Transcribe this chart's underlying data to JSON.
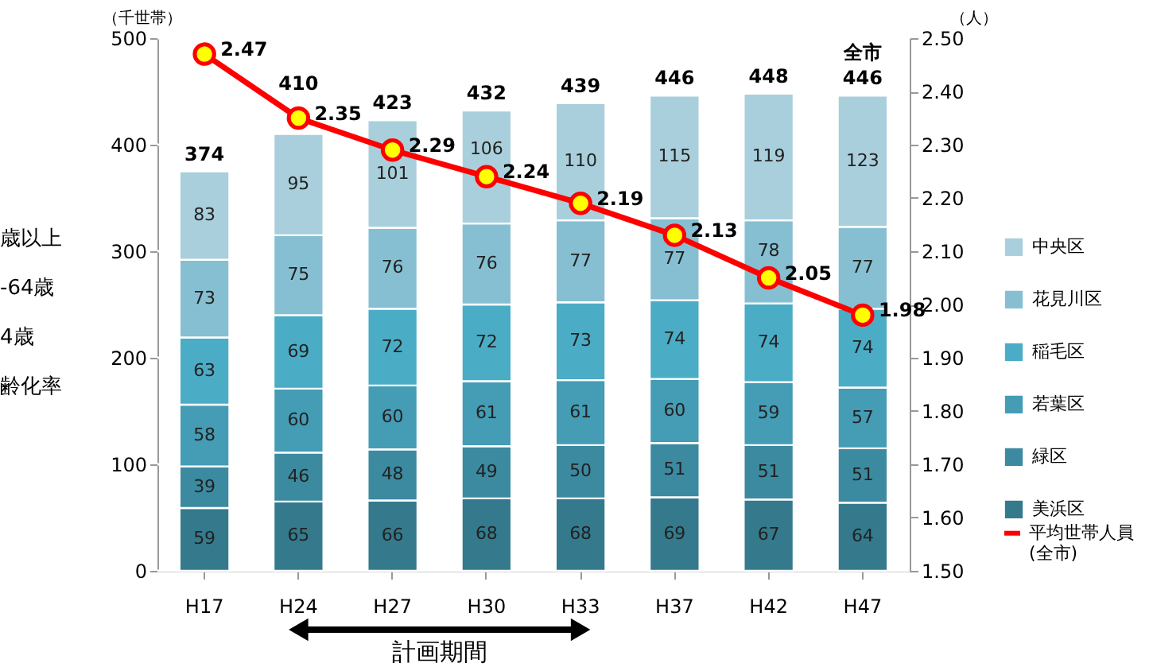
{
  "chart_data": {
    "type": "bar",
    "stacked": true,
    "categories": [
      "H17",
      "H24",
      "H27",
      "H30",
      "H33",
      "H37",
      "H42",
      "H47"
    ],
    "ylabel": "（千世帯）",
    "y2label": "（人）",
    "ylim": [
      0,
      500
    ],
    "yticks": [
      0,
      100,
      200,
      300,
      400,
      500
    ],
    "y2lim": [
      1.5,
      2.5
    ],
    "y2ticks": [
      {
        "value": 1.5,
        "label": "1.50"
      },
      {
        "value": 1.6,
        "label": "1.60"
      },
      {
        "value": 1.7,
        "label": "1.70"
      },
      {
        "value": 1.8,
        "label": "1.80"
      },
      {
        "value": 1.9,
        "label": "1.90"
      },
      {
        "value": 2.0,
        "label": "2.00"
      },
      {
        "value": 2.1,
        "label": "2.10"
      },
      {
        "value": 2.2,
        "label": "2.20"
      },
      {
        "value": 2.3,
        "label": "2.30"
      },
      {
        "value": 2.4,
        "label": "2.40"
      },
      {
        "value": 2.5,
        "label": "2.50"
      }
    ],
    "series": [
      {
        "name": "美浜区",
        "color": "#347a8c",
        "values": [
          59,
          65,
          66,
          68,
          68,
          69,
          67,
          64
        ]
      },
      {
        "name": "緑区",
        "color": "#3b8aa0",
        "values": [
          39,
          46,
          48,
          49,
          50,
          51,
          51,
          51
        ]
      },
      {
        "name": "若葉区",
        "color": "#449cb5",
        "values": [
          58,
          60,
          60,
          61,
          61,
          60,
          59,
          57
        ]
      },
      {
        "name": "稲毛区",
        "color": "#4bacc6",
        "values": [
          63,
          69,
          72,
          72,
          73,
          74,
          74,
          74
        ]
      },
      {
        "name": "花見川区",
        "color": "#86bfd2",
        "values": [
          73,
          75,
          76,
          76,
          77,
          77,
          78,
          77
        ]
      },
      {
        "name": "中央区",
        "color": "#a9cfdc",
        "values": [
          83,
          95,
          101,
          106,
          110,
          115,
          119,
          123
        ]
      },
      {
        "name": "平均世帯人員(全市)",
        "type": "line",
        "axis": "y2",
        "color": "#ff0000",
        "marker": "circle",
        "values": [
          2.47,
          2.35,
          2.29,
          2.24,
          2.19,
          2.13,
          2.05,
          1.98
        ]
      }
    ],
    "totals": [
      "374",
      "410",
      "423",
      "432",
      "439",
      "446",
      "448",
      "446"
    ],
    "data_labels": true,
    "grid": "y",
    "legend": "right",
    "annotations": [
      "計画期間",
      "全市",
      "歳以上",
      "-64歳",
      "4歳",
      "齢化率"
    ]
  }
}
